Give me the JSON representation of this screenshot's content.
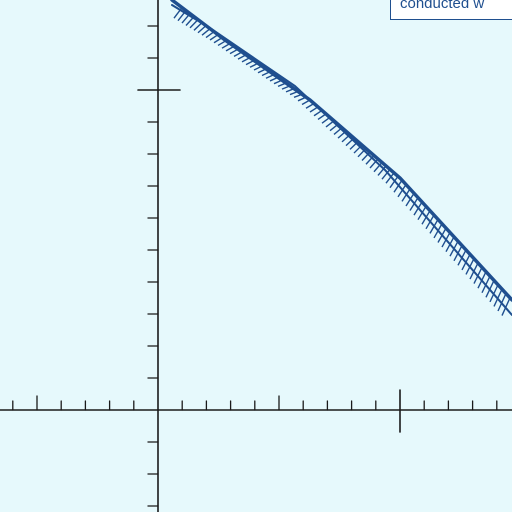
{
  "diagram": {
    "annotation_text": "conducted w",
    "colors": {
      "background": "#e6f9fc",
      "axis": "#1a1a1a",
      "band": "#1f4f8f"
    }
  }
}
